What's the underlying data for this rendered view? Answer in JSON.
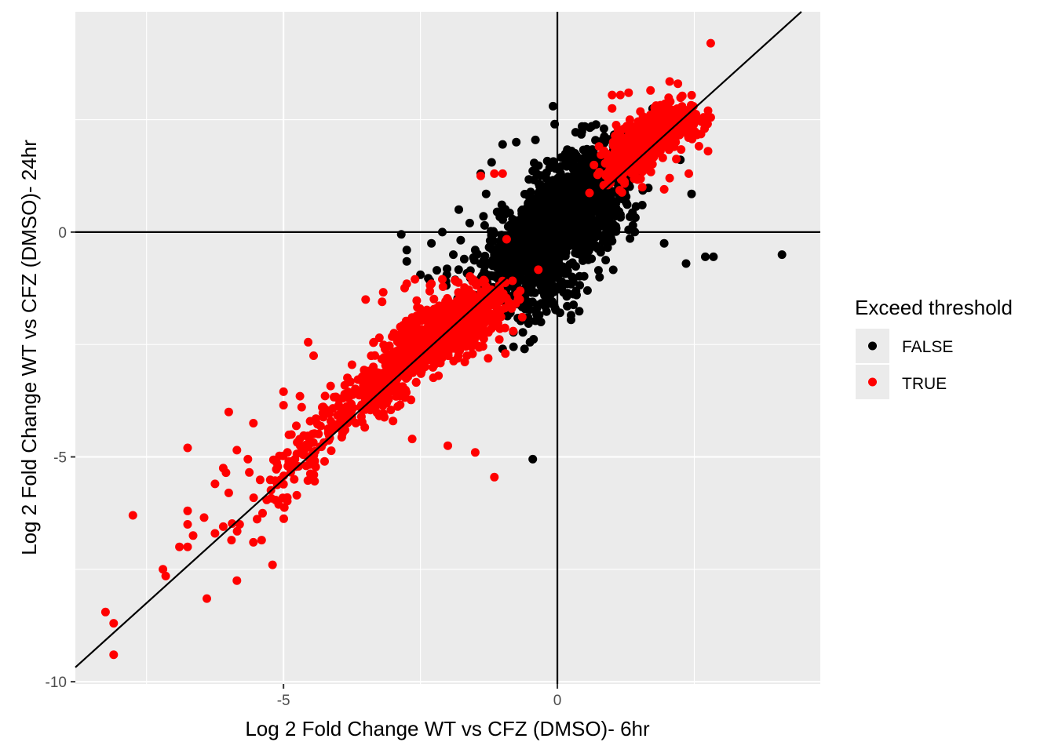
{
  "chart_data": {
    "type": "scatter",
    "title": "",
    "xlabel": "Log 2 Fold Change WT vs CFZ (DMSO)- 6hr",
    "ylabel": "Log 2 Fold Change WT vs CFZ (DMSO)- 24hr",
    "xlim": [
      -8.8,
      4.8
    ],
    "ylim": [
      -10.05,
      4.9
    ],
    "x_ticks": [
      -5,
      0
    ],
    "y_ticks": [
      -10,
      -5,
      0
    ],
    "grid": true,
    "background": "#ebebeb",
    "legend": {
      "title": "Exceed threshold",
      "position": "right",
      "entries": [
        {
          "label": "FALSE",
          "color": "#000000"
        },
        {
          "label": "TRUE",
          "color": "#ff0000"
        }
      ]
    },
    "reference_lines": {
      "hline": 0,
      "vline": 0,
      "diagonal": {
        "slope": 1.1,
        "intercept": 0
      }
    },
    "series": [
      {
        "name": "FALSE",
        "color": "#000000",
        "points": [
          [
            -0.08,
            2.8
          ],
          [
            -0.05,
            2.4
          ],
          [
            0.45,
            2.35
          ],
          [
            0.5,
            2.35
          ],
          [
            0.85,
            2.3
          ],
          [
            -1.4,
            1.3
          ],
          [
            -1.2,
            1.55
          ],
          [
            -1.0,
            1.95
          ],
          [
            -0.75,
            2.0
          ],
          [
            -0.4,
            2.05
          ],
          [
            -1.3,
            0.85
          ],
          [
            -1.1,
            0.45
          ],
          [
            -1.35,
            0.35
          ],
          [
            -1.8,
            0.5
          ],
          [
            -1.6,
            0.2
          ],
          [
            -2.75,
            -0.4
          ],
          [
            -2.75,
            -0.65
          ],
          [
            -2.1,
            0.0
          ],
          [
            -2.3,
            -0.25
          ],
          [
            -2.85,
            -0.05
          ],
          [
            -1.9,
            -0.5
          ],
          [
            -1.7,
            -0.6
          ],
          [
            -2.5,
            -0.95
          ],
          [
            -2.2,
            -0.85
          ],
          [
            -1.5,
            -0.4
          ],
          [
            -1.0,
            -2.6
          ],
          [
            -0.8,
            -2.55
          ],
          [
            -0.6,
            -2.6
          ],
          [
            -0.5,
            -2.45
          ],
          [
            -0.3,
            -2.0
          ],
          [
            0.25,
            -1.95
          ],
          [
            0.35,
            -1.4
          ],
          [
            0.55,
            -1.3
          ],
          [
            0.75,
            -0.85
          ],
          [
            1.0,
            -0.2
          ],
          [
            1.55,
            0.6
          ],
          [
            2.45,
            0.85
          ],
          [
            1.95,
            -0.25
          ],
          [
            2.35,
            -0.7
          ],
          [
            2.7,
            -0.55
          ],
          [
            2.85,
            -0.55
          ],
          [
            4.1,
            -0.5
          ],
          [
            -0.45,
            -5.05
          ],
          [
            0.25,
            -1.85
          ],
          [
            1.3,
            0.05
          ]
        ],
        "clusters": [
          {
            "cx": 0.0,
            "cy": 0.2,
            "sx": 0.35,
            "sy": 0.48,
            "rho": 0.4,
            "n": 650
          },
          {
            "cx": 0.25,
            "cy": 0.4,
            "sx": 0.6,
            "sy": 0.8,
            "rho": 0.65,
            "n": 420
          },
          {
            "cx": -0.25,
            "cy": -0.2,
            "sx": 0.7,
            "sy": 0.75,
            "rho": 0.6,
            "n": 320
          },
          {
            "cx": 0.6,
            "cy": 1.2,
            "sx": 0.35,
            "sy": 0.5,
            "rho": 0.3,
            "n": 160
          },
          {
            "cx": -0.8,
            "cy": -0.6,
            "sx": 0.4,
            "sy": 0.45,
            "rho": 0.5,
            "n": 140
          },
          {
            "cx": -0.3,
            "cy": -1.35,
            "sx": 0.4,
            "sy": 0.35,
            "rho": 0.2,
            "n": 90
          },
          {
            "cx": 0.75,
            "cy": 0.25,
            "sx": 0.3,
            "sy": 0.45,
            "rho": 0.2,
            "n": 90
          }
        ]
      },
      {
        "name": "TRUE",
        "color": "#ff0000",
        "points": [
          [
            2.8,
            4.2
          ],
          [
            2.2,
            3.3
          ],
          [
            2.05,
            3.35
          ],
          [
            1.7,
            3.15
          ],
          [
            1.3,
            3.1
          ],
          [
            1.0,
            3.05
          ],
          [
            1.15,
            3.05
          ],
          [
            2.75,
            2.7
          ],
          [
            2.8,
            2.55
          ],
          [
            1.0,
            2.75
          ],
          [
            2.75,
            1.8
          ],
          [
            2.4,
            1.3
          ],
          [
            1.95,
            0.95
          ],
          [
            1.55,
            1.0
          ],
          [
            2.05,
            1.2
          ],
          [
            -1.4,
            1.25
          ],
          [
            -1.15,
            1.3
          ],
          [
            -1.0,
            1.3
          ],
          [
            -3.5,
            -1.5
          ],
          [
            -3.2,
            -1.55
          ],
          [
            -2.75,
            -1.15
          ],
          [
            -2.6,
            -1.05
          ],
          [
            -2.3,
            -1.15
          ],
          [
            -5.0,
            -3.55
          ],
          [
            -4.7,
            -3.65
          ],
          [
            -5.0,
            -3.85
          ],
          [
            -6.0,
            -4.0
          ],
          [
            -5.55,
            -4.25
          ],
          [
            -6.75,
            -4.8
          ],
          [
            -5.85,
            -4.85
          ],
          [
            -5.65,
            -5.05
          ],
          [
            -6.1,
            -5.25
          ],
          [
            -6.05,
            -5.35
          ],
          [
            -6.25,
            -5.6
          ],
          [
            -6.0,
            -5.8
          ],
          [
            -7.75,
            -6.3
          ],
          [
            -6.75,
            -6.2
          ],
          [
            -6.75,
            -6.5
          ],
          [
            -6.45,
            -6.35
          ],
          [
            -6.65,
            -6.75
          ],
          [
            -6.1,
            -6.55
          ],
          [
            -6.25,
            -6.7
          ],
          [
            -5.8,
            -6.5
          ],
          [
            -5.95,
            -6.85
          ],
          [
            -5.4,
            -6.85
          ],
          [
            -5.55,
            -6.9
          ],
          [
            -6.9,
            -7.0
          ],
          [
            -6.75,
            -7.0
          ],
          [
            -7.2,
            -7.5
          ],
          [
            -7.15,
            -7.65
          ],
          [
            -5.2,
            -7.4
          ],
          [
            -5.85,
            -7.75
          ],
          [
            -6.4,
            -8.15
          ],
          [
            -8.1,
            -8.7
          ],
          [
            -8.25,
            -8.45
          ],
          [
            -8.1,
            -9.4
          ],
          [
            -1.15,
            -5.45
          ],
          [
            -1.5,
            -4.9
          ],
          [
            -2.0,
            -4.75
          ],
          [
            -2.65,
            -4.6
          ],
          [
            -4.25,
            -5.1
          ],
          [
            -3.0,
            -4.2
          ],
          [
            -1.65,
            -2.75
          ],
          [
            -1.05,
            -2.15
          ],
          [
            -0.95,
            -2.7
          ],
          [
            -3.75,
            -2.95
          ],
          [
            -4.45,
            -2.75
          ],
          [
            -4.55,
            -2.45
          ],
          [
            -3.25,
            -2.35
          ],
          [
            -2.1,
            -1.05
          ],
          [
            -1.85,
            -1.1
          ],
          [
            -1.55,
            -1.1
          ],
          [
            -2.0,
            -1.5
          ],
          [
            -1.2,
            -1.85
          ],
          [
            -3.35,
            -2.45
          ]
        ],
        "clusters": [
          {
            "cx": -2.0,
            "cy": -2.05,
            "sx": 0.5,
            "sy": 0.45,
            "rho": 0.5,
            "n": 330
          },
          {
            "cx": -2.6,
            "cy": -2.7,
            "sx": 0.4,
            "sy": 0.4,
            "rho": 0.6,
            "n": 200
          },
          {
            "cx": -1.5,
            "cy": -1.8,
            "sx": 0.3,
            "sy": 0.35,
            "rho": 0.4,
            "n": 160
          },
          {
            "cx": -3.3,
            "cy": -3.5,
            "sx": 0.4,
            "sy": 0.45,
            "rho": 0.7,
            "n": 150
          },
          {
            "cx": -4.2,
            "cy": -4.3,
            "sx": 0.4,
            "sy": 0.5,
            "rho": 0.7,
            "n": 90
          },
          {
            "cx": -5.0,
            "cy": -5.5,
            "sx": 0.4,
            "sy": 0.5,
            "rho": 0.6,
            "n": 45
          },
          {
            "cx": 1.55,
            "cy": 1.95,
            "sx": 0.3,
            "sy": 0.35,
            "rho": 0.5,
            "n": 300
          },
          {
            "cx": 1.85,
            "cy": 2.25,
            "sx": 0.3,
            "sy": 0.3,
            "rho": 0.4,
            "n": 170
          },
          {
            "cx": 1.25,
            "cy": 1.6,
            "sx": 0.2,
            "sy": 0.3,
            "rho": 0.3,
            "n": 100
          },
          {
            "cx": 2.3,
            "cy": 2.35,
            "sx": 0.25,
            "sy": 0.3,
            "rho": 0.3,
            "n": 45
          }
        ]
      }
    ]
  }
}
